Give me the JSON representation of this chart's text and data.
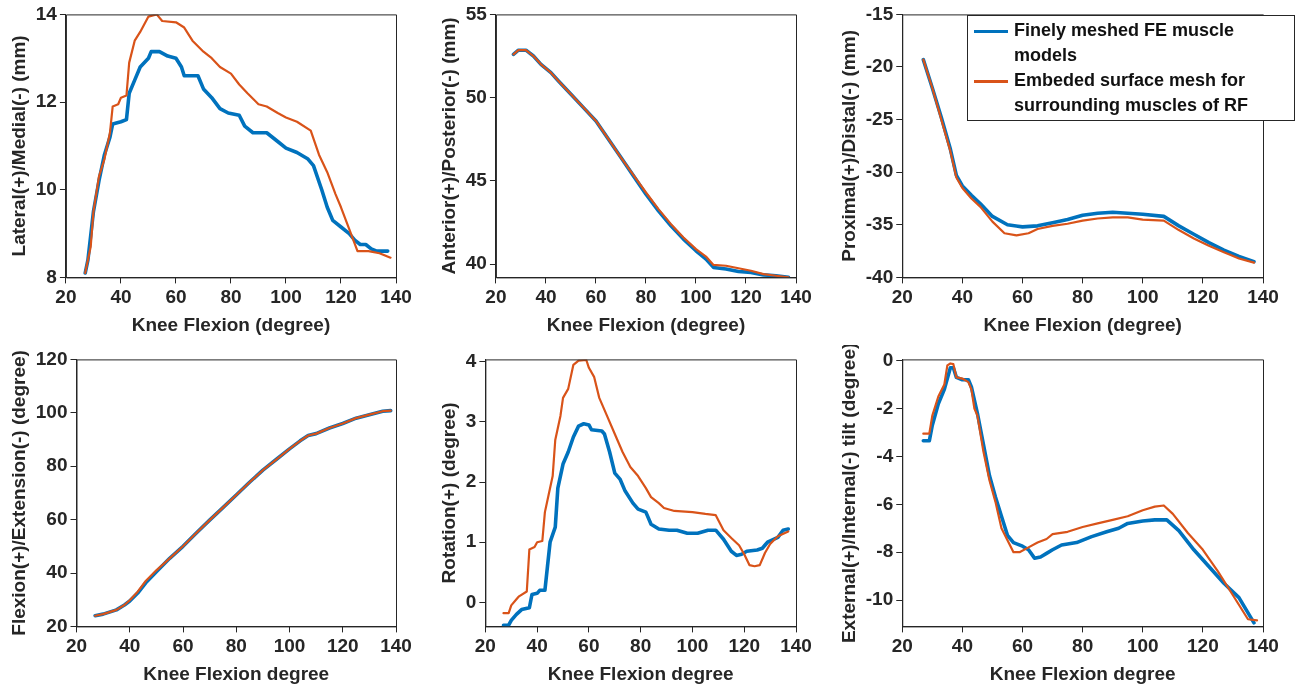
{
  "chart_data": [
    {
      "type": "line",
      "xlabel": "Knee Flexion (degree)",
      "ylabel": "Lateral(+)/Medial(-) (mm)",
      "xlim": [
        20,
        140
      ],
      "xticks": [
        20,
        40,
        60,
        80,
        100,
        120,
        140
      ],
      "ylim": [
        8,
        14
      ],
      "yticks": [
        8,
        10,
        12,
        14
      ],
      "series": [
        {
          "color": "#0072bd",
          "x": [
            27,
            28,
            30,
            32,
            34,
            36,
            37,
            40,
            42,
            43,
            45,
            47,
            50,
            51,
            54,
            57,
            60,
            62,
            63,
            67,
            68,
            70,
            73,
            76,
            79,
            83,
            85,
            88,
            93,
            97,
            100,
            104,
            108,
            110,
            113,
            115,
            117,
            120,
            123,
            125,
            127,
            129,
            131,
            133,
            137
          ],
          "values": [
            8.1,
            8.4,
            9.5,
            10.2,
            10.8,
            11.2,
            11.5,
            11.55,
            11.6,
            12.2,
            12.5,
            12.8,
            13.0,
            13.15,
            13.15,
            13.05,
            13.0,
            12.8,
            12.6,
            12.6,
            12.6,
            12.3,
            12.1,
            11.85,
            11.75,
            11.7,
            11.45,
            11.3,
            11.3,
            11.1,
            10.95,
            10.85,
            10.7,
            10.55,
            10.0,
            9.6,
            9.3,
            9.15,
            9.0,
            8.85,
            8.75,
            8.75,
            8.65,
            8.6,
            8.6
          ]
        },
        {
          "color": "#d95319",
          "x": [
            27,
            29,
            30,
            32,
            34,
            36,
            37,
            39,
            40,
            42,
            43,
            45,
            47,
            50,
            53,
            55,
            60,
            63,
            66,
            70,
            73,
            76,
            80,
            83,
            86,
            90,
            93,
            97,
            100,
            104,
            109,
            112,
            115,
            118,
            120,
            123,
            126,
            130,
            134,
            138
          ],
          "values": [
            8.1,
            8.7,
            9.5,
            10.3,
            10.7,
            11.3,
            11.9,
            11.95,
            12.1,
            12.15,
            12.9,
            13.4,
            13.6,
            13.95,
            14.0,
            13.85,
            13.82,
            13.7,
            13.4,
            13.15,
            13.0,
            12.8,
            12.65,
            12.4,
            12.2,
            11.95,
            11.9,
            11.75,
            11.65,
            11.55,
            11.35,
            10.8,
            10.4,
            9.9,
            9.6,
            9.1,
            8.6,
            8.6,
            8.55,
            8.45
          ]
        }
      ]
    },
    {
      "type": "line",
      "xlabel": "Knee Flexion (degree)",
      "ylabel": "Anterior(+)/Posterior(-) (mm)",
      "xlim": [
        20,
        140
      ],
      "xticks": [
        20,
        40,
        60,
        80,
        100,
        120,
        140
      ],
      "ylim": [
        39.2,
        55
      ],
      "yticks": [
        40,
        45,
        50,
        55
      ],
      "series": [
        {
          "color": "#0072bd",
          "x": [
            27,
            29,
            32,
            35,
            38,
            42,
            45,
            50,
            55,
            60,
            65,
            70,
            75,
            80,
            85,
            90,
            95,
            100,
            104,
            107,
            112,
            117,
            122,
            127,
            132,
            137
          ],
          "values": [
            52.6,
            52.85,
            52.85,
            52.5,
            52.0,
            51.5,
            51.0,
            50.2,
            49.4,
            48.6,
            47.5,
            46.4,
            45.3,
            44.2,
            43.2,
            42.3,
            41.5,
            40.8,
            40.3,
            39.8,
            39.7,
            39.55,
            39.5,
            39.35,
            39.3,
            39.2
          ]
        },
        {
          "color": "#d95319",
          "x": [
            27,
            29,
            32,
            35,
            38,
            42,
            45,
            50,
            55,
            60,
            65,
            70,
            75,
            80,
            85,
            90,
            95,
            100,
            104,
            107,
            112,
            117,
            122,
            127,
            132,
            137
          ],
          "values": [
            52.6,
            52.85,
            52.85,
            52.5,
            52.0,
            51.5,
            51.0,
            50.2,
            49.4,
            48.6,
            47.5,
            46.4,
            45.35,
            44.3,
            43.3,
            42.4,
            41.6,
            40.9,
            40.45,
            39.95,
            39.9,
            39.75,
            39.6,
            39.4,
            39.3,
            39.2
          ]
        }
      ]
    },
    {
      "type": "line",
      "xlabel": "Knee Flexion (degree)",
      "ylabel": "Proximal(+)/Distal(-) (mm)",
      "xlim": [
        20,
        140
      ],
      "xticks": [
        20,
        40,
        60,
        80,
        100,
        120,
        140
      ],
      "ylim": [
        -40,
        -15
      ],
      "yticks": [
        -40,
        -35,
        -30,
        -25,
        -20,
        -15
      ],
      "legend": "top right",
      "series": [
        {
          "name": "Finely meshed FE muscle models",
          "color": "#0072bd",
          "x": [
            27,
            30,
            33,
            36,
            38,
            40,
            43,
            46,
            50,
            55,
            60,
            65,
            70,
            75,
            80,
            85,
            90,
            95,
            100,
            107,
            112,
            117,
            122,
            127,
            132,
            137
          ],
          "values": [
            -19.3,
            -22,
            -24.8,
            -27.8,
            -30.3,
            -31.3,
            -32.2,
            -33.0,
            -34.2,
            -35.0,
            -35.2,
            -35.1,
            -34.8,
            -34.5,
            -34.1,
            -33.9,
            -33.8,
            -33.9,
            -34.0,
            -34.2,
            -35.1,
            -35.9,
            -36.7,
            -37.4,
            -38.0,
            -38.5
          ]
        },
        {
          "name": "Embeded surface mesh for surrounding muscles of RF",
          "color": "#d95319",
          "x": [
            27,
            30,
            33,
            36,
            38,
            40,
            43,
            46,
            50,
            54,
            58,
            62,
            65,
            70,
            75,
            80,
            85,
            90,
            95,
            100,
            107,
            112,
            117,
            122,
            127,
            132,
            137
          ],
          "values": [
            -19.3,
            -22,
            -25,
            -28,
            -30.5,
            -31.5,
            -32.5,
            -33.3,
            -34.7,
            -35.8,
            -36.0,
            -35.8,
            -35.4,
            -35.1,
            -34.9,
            -34.6,
            -34.4,
            -34.3,
            -34.3,
            -34.5,
            -34.6,
            -35.5,
            -36.3,
            -37.0,
            -37.6,
            -38.2,
            -38.6
          ]
        }
      ]
    },
    {
      "type": "line",
      "xlabel": "Knee Flexion degree",
      "ylabel": "Flexion(+)/Extension(-) (degree)",
      "xlim": [
        20,
        140
      ],
      "xticks": [
        20,
        40,
        60,
        80,
        100,
        120,
        140
      ],
      "ylim": [
        20,
        120
      ],
      "yticks": [
        20,
        40,
        60,
        80,
        100,
        120
      ],
      "series": [
        {
          "color": "#0072bd",
          "x": [
            27,
            30,
            35,
            38,
            40,
            43,
            46,
            50,
            55,
            60,
            65,
            70,
            75,
            80,
            85,
            90,
            95,
            100,
            104,
            107,
            110,
            115,
            120,
            125,
            130,
            135,
            138
          ],
          "values": [
            24,
            24.6,
            26.2,
            28,
            29.5,
            32.5,
            36.3,
            40.5,
            45.5,
            50,
            55,
            59.8,
            64.5,
            69.2,
            74,
            78.5,
            82.5,
            86.5,
            89.5,
            91.5,
            92.2,
            94.3,
            96,
            98,
            99.3,
            100.6,
            100.8
          ]
        },
        {
          "color": "#d95319",
          "x": [
            27,
            30,
            35,
            38,
            40,
            43,
            46,
            50,
            55,
            60,
            65,
            70,
            75,
            80,
            85,
            90,
            95,
            100,
            104,
            107,
            110,
            115,
            120,
            125,
            130,
            135,
            138
          ],
          "values": [
            24,
            24.6,
            26.2,
            28,
            29.8,
            33,
            37,
            41,
            45.5,
            50,
            55,
            59.8,
            64.5,
            69.2,
            74,
            78.5,
            82.5,
            86.5,
            89.5,
            91.5,
            92.2,
            94.3,
            96,
            98,
            99.3,
            100.6,
            100.8
          ]
        }
      ]
    },
    {
      "type": "line",
      "xlabel": "Knee Flexion degree",
      "ylabel": "Rotation(+) (degree)",
      "xlim": [
        20,
        140
      ],
      "xticks": [
        20,
        40,
        60,
        80,
        100,
        120,
        140
      ],
      "ylim": [
        -0.4,
        4.04
      ],
      "yticks": [
        0,
        1,
        2,
        3,
        4
      ],
      "series": [
        {
          "color": "#0072bd",
          "x": [
            27,
            29,
            30,
            32,
            34,
            37,
            38,
            40,
            41,
            43,
            44,
            45,
            47,
            48,
            50,
            52,
            54,
            56,
            58,
            60,
            61,
            65,
            66,
            68,
            70,
            72,
            74,
            77,
            79,
            82,
            84,
            87,
            91,
            94,
            98,
            102,
            106,
            109,
            112,
            115,
            117,
            119,
            121,
            125,
            127,
            129,
            133,
            135,
            137
          ],
          "values": [
            -0.38,
            -0.38,
            -0.3,
            -0.2,
            -0.12,
            -0.09,
            0.13,
            0.15,
            0.2,
            0.2,
            0.6,
            1.0,
            1.25,
            1.9,
            2.3,
            2.5,
            2.75,
            2.93,
            2.97,
            2.95,
            2.87,
            2.85,
            2.8,
            2.5,
            2.15,
            2.05,
            1.85,
            1.65,
            1.55,
            1.5,
            1.3,
            1.22,
            1.2,
            1.2,
            1.15,
            1.15,
            1.2,
            1.2,
            1.05,
            0.85,
            0.78,
            0.8,
            0.85,
            0.87,
            0.9,
            1.0,
            1.08,
            1.2,
            1.22
          ]
        },
        {
          "color": "#d95319",
          "x": [
            27,
            29,
            30,
            32,
            33,
            36,
            37,
            39,
            40,
            42,
            43,
            45,
            46,
            47,
            49,
            50,
            52,
            54,
            56,
            59,
            60,
            62,
            64,
            67,
            70,
            73,
            76,
            79,
            82,
            84,
            87,
            89,
            93,
            100,
            105,
            109,
            112,
            115,
            118,
            120,
            122,
            124,
            126,
            128,
            130,
            133,
            137
          ],
          "values": [
            -0.18,
            -0.18,
            -0.05,
            0.05,
            0.1,
            0.18,
            0.88,
            0.92,
            1.0,
            1.02,
            1.5,
            1.9,
            2.1,
            2.7,
            3.1,
            3.4,
            3.55,
            3.95,
            4.02,
            4.03,
            3.9,
            3.75,
            3.4,
            3.1,
            2.8,
            2.5,
            2.25,
            2.1,
            1.9,
            1.75,
            1.65,
            1.57,
            1.52,
            1.5,
            1.47,
            1.45,
            1.2,
            1.07,
            0.95,
            0.8,
            0.62,
            0.6,
            0.62,
            0.82,
            0.97,
            1.1,
            1.18
          ]
        }
      ]
    },
    {
      "type": "line",
      "xlabel": "Knee Flexion degree",
      "ylabel": "External(+)/Internal(-) tilt (degree)",
      "xlim": [
        20,
        140
      ],
      "xticks": [
        20,
        40,
        60,
        80,
        100,
        120,
        140
      ],
      "ylim": [
        -11.1,
        0.05
      ],
      "yticks": [
        -10,
        -8,
        -6,
        -4,
        -2,
        0
      ],
      "series": [
        {
          "color": "#0072bd",
          "x": [
            27,
            29,
            30,
            32,
            34,
            36,
            37,
            38,
            40,
            42,
            43,
            45,
            47,
            49,
            51,
            53,
            55,
            57,
            60,
            62,
            64,
            66,
            68,
            70,
            73,
            78,
            83,
            88,
            92,
            95,
            100,
            104,
            108,
            112,
            117,
            122,
            127,
            132,
            137
          ],
          "values": [
            -3.35,
            -3.35,
            -2.7,
            -1.8,
            -1.2,
            -0.3,
            -0.3,
            -0.7,
            -0.8,
            -0.8,
            -1.1,
            -2.2,
            -3.5,
            -4.8,
            -5.7,
            -6.5,
            -7.3,
            -7.6,
            -7.75,
            -7.9,
            -8.25,
            -8.2,
            -8.05,
            -7.9,
            -7.7,
            -7.6,
            -7.35,
            -7.15,
            -7.0,
            -6.8,
            -6.7,
            -6.65,
            -6.65,
            -7.1,
            -7.9,
            -8.6,
            -9.3,
            -9.9,
            -10.95
          ]
        },
        {
          "color": "#d95319",
          "x": [
            27,
            29,
            30,
            32,
            34,
            35,
            36,
            37,
            38,
            40,
            42,
            43,
            44,
            45,
            47,
            49,
            51,
            53,
            55,
            57,
            59,
            62,
            65,
            68,
            70,
            75,
            80,
            85,
            90,
            95,
            100,
            104,
            107,
            110,
            115,
            120,
            125,
            130,
            135,
            138
          ],
          "values": [
            -3.05,
            -3.05,
            -2.3,
            -1.5,
            -1.0,
            -0.2,
            -0.12,
            -0.15,
            -0.7,
            -0.75,
            -0.9,
            -1.2,
            -2.0,
            -2.3,
            -3.8,
            -5.0,
            -5.9,
            -7.0,
            -7.5,
            -8.0,
            -8.0,
            -7.8,
            -7.6,
            -7.45,
            -7.25,
            -7.15,
            -6.95,
            -6.8,
            -6.65,
            -6.5,
            -6.25,
            -6.1,
            -6.05,
            -6.4,
            -7.2,
            -7.9,
            -8.8,
            -9.8,
            -10.8,
            -10.85
          ]
        }
      ]
    }
  ]
}
